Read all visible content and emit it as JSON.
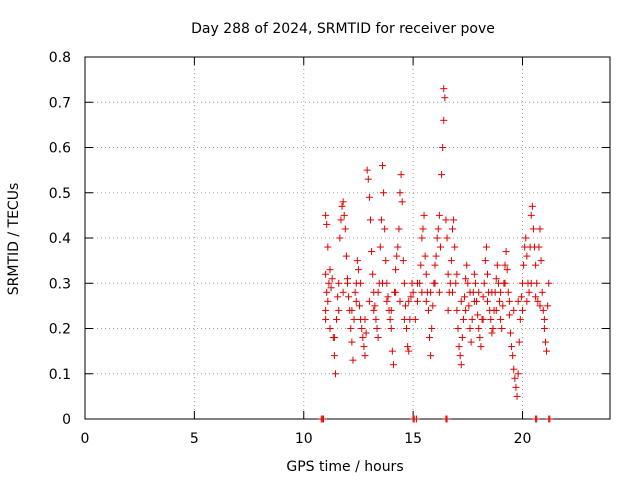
{
  "chart_data": {
    "type": "scatter",
    "title": "Day 288 of 2024, SRMTID for receiver pove",
    "xlabel": "GPS time / hours",
    "ylabel": "SRMTID / TECUs",
    "xlim": [
      0,
      24
    ],
    "ylim": [
      0,
      0.8
    ],
    "xticks": [
      0,
      5,
      10,
      15,
      20
    ],
    "yticks": [
      0,
      0.1,
      0.2,
      0.3,
      0.4,
      0.5,
      0.6,
      0.7,
      0.8
    ],
    "ytick_labels": [
      "0",
      "0.1",
      "0.2",
      "0.3",
      "0.4",
      "0.5",
      "0.6",
      "0.7",
      "0.8"
    ],
    "grid": true,
    "marker": "+",
    "marker_color": "#e00000",
    "series": [
      {
        "points": [
          [
            10.8,
            0.0
          ],
          [
            10.85,
            0.0
          ],
          [
            10.9,
            0.0
          ],
          [
            15.0,
            0.0
          ],
          [
            15.05,
            0.0
          ],
          [
            15.15,
            0.0
          ],
          [
            16.5,
            0.0
          ],
          [
            16.55,
            0.0
          ],
          [
            20.6,
            0.0
          ],
          [
            20.65,
            0.0
          ],
          [
            21.2,
            0.0
          ],
          [
            21.25,
            0.0
          ],
          [
            11.0,
            0.45
          ],
          [
            11.05,
            0.43
          ],
          [
            11.1,
            0.38
          ],
          [
            11.0,
            0.32
          ],
          [
            11.05,
            0.28
          ],
          [
            11.1,
            0.26
          ],
          [
            11.0,
            0.24
          ],
          [
            11.15,
            0.3
          ],
          [
            11.2,
            0.33
          ],
          [
            11.25,
            0.29
          ],
          [
            11.3,
            0.31
          ],
          [
            11.35,
            0.18
          ],
          [
            11.4,
            0.14
          ],
          [
            11.45,
            0.1
          ],
          [
            11.5,
            0.22
          ],
          [
            11.55,
            0.27
          ],
          [
            11.6,
            0.3
          ],
          [
            11.65,
            0.4
          ],
          [
            11.7,
            0.44
          ],
          [
            11.75,
            0.47
          ],
          [
            11.8,
            0.48
          ],
          [
            11.85,
            0.45
          ],
          [
            11.9,
            0.42
          ],
          [
            11.95,
            0.36
          ],
          [
            12.0,
            0.31
          ],
          [
            12.05,
            0.27
          ],
          [
            12.1,
            0.24
          ],
          [
            12.15,
            0.2
          ],
          [
            12.2,
            0.17
          ],
          [
            12.25,
            0.13
          ],
          [
            12.3,
            0.22
          ],
          [
            12.35,
            0.28
          ],
          [
            12.4,
            0.3
          ],
          [
            12.45,
            0.35
          ],
          [
            12.5,
            0.33
          ],
          [
            12.55,
            0.25
          ],
          [
            12.6,
            0.22
          ],
          [
            12.65,
            0.2
          ],
          [
            12.7,
            0.18
          ],
          [
            12.75,
            0.16
          ],
          [
            12.8,
            0.14
          ],
          [
            12.85,
            0.19
          ],
          [
            12.9,
            0.55
          ],
          [
            12.95,
            0.53
          ],
          [
            13.0,
            0.49
          ],
          [
            13.05,
            0.44
          ],
          [
            13.1,
            0.37
          ],
          [
            13.15,
            0.32
          ],
          [
            13.2,
            0.28
          ],
          [
            13.25,
            0.25
          ],
          [
            13.3,
            0.22
          ],
          [
            13.35,
            0.2
          ],
          [
            13.4,
            0.18
          ],
          [
            13.45,
            0.3
          ],
          [
            13.5,
            0.38
          ],
          [
            13.55,
            0.44
          ],
          [
            13.6,
            0.56
          ],
          [
            13.65,
            0.5
          ],
          [
            13.7,
            0.42
          ],
          [
            13.75,
            0.35
          ],
          [
            13.8,
            0.3
          ],
          [
            13.85,
            0.27
          ],
          [
            13.9,
            0.24
          ],
          [
            13.95,
            0.22
          ],
          [
            14.0,
            0.2
          ],
          [
            14.05,
            0.15
          ],
          [
            14.1,
            0.12
          ],
          [
            14.15,
            0.28
          ],
          [
            14.2,
            0.33
          ],
          [
            14.25,
            0.36
          ],
          [
            14.3,
            0.38
          ],
          [
            14.35,
            0.42
          ],
          [
            14.4,
            0.5
          ],
          [
            14.45,
            0.54
          ],
          [
            14.5,
            0.48
          ],
          [
            14.55,
            0.35
          ],
          [
            14.6,
            0.3
          ],
          [
            14.65,
            0.25
          ],
          [
            14.7,
            0.2
          ],
          [
            14.75,
            0.16
          ],
          [
            14.8,
            0.15
          ],
          [
            14.85,
            0.22
          ],
          [
            14.9,
            0.27
          ],
          [
            14.95,
            0.3
          ],
          [
            15.0,
            0.28
          ],
          [
            15.1,
            0.22
          ],
          [
            15.2,
            0.26
          ],
          [
            15.3,
            0.3
          ],
          [
            15.35,
            0.34
          ],
          [
            15.4,
            0.4
          ],
          [
            15.45,
            0.42
          ],
          [
            15.5,
            0.45
          ],
          [
            15.55,
            0.36
          ],
          [
            15.6,
            0.32
          ],
          [
            15.65,
            0.28
          ],
          [
            15.7,
            0.24
          ],
          [
            15.75,
            0.18
          ],
          [
            15.8,
            0.14
          ],
          [
            15.85,
            0.2
          ],
          [
            15.9,
            0.25
          ],
          [
            15.95,
            0.3
          ],
          [
            16.0,
            0.34
          ],
          [
            16.05,
            0.36
          ],
          [
            16.1,
            0.4
          ],
          [
            16.15,
            0.42
          ],
          [
            16.2,
            0.45
          ],
          [
            16.25,
            0.38
          ],
          [
            16.3,
            0.54
          ],
          [
            16.35,
            0.6
          ],
          [
            16.4,
            0.66
          ],
          [
            16.45,
            0.71
          ],
          [
            16.4,
            0.73
          ],
          [
            16.5,
            0.44
          ],
          [
            16.55,
            0.4
          ],
          [
            16.6,
            0.32
          ],
          [
            16.65,
            0.28
          ],
          [
            16.7,
            0.3
          ],
          [
            16.75,
            0.35
          ],
          [
            16.8,
            0.42
          ],
          [
            16.85,
            0.44
          ],
          [
            16.9,
            0.38
          ],
          [
            16.95,
            0.3
          ],
          [
            17.0,
            0.24
          ],
          [
            17.05,
            0.2
          ],
          [
            17.1,
            0.16
          ],
          [
            17.15,
            0.14
          ],
          [
            17.2,
            0.12
          ],
          [
            17.25,
            0.18
          ],
          [
            17.3,
            0.22
          ],
          [
            17.35,
            0.27
          ],
          [
            17.4,
            0.31
          ],
          [
            17.45,
            0.34
          ],
          [
            17.5,
            0.3
          ],
          [
            17.55,
            0.25
          ],
          [
            17.6,
            0.2
          ],
          [
            17.65,
            0.17
          ],
          [
            17.7,
            0.22
          ],
          [
            17.75,
            0.28
          ],
          [
            17.8,
            0.32
          ],
          [
            17.85,
            0.3
          ],
          [
            17.9,
            0.26
          ],
          [
            17.95,
            0.23
          ],
          [
            18.0,
            0.2
          ],
          [
            18.05,
            0.18
          ],
          [
            18.1,
            0.16
          ],
          [
            18.15,
            0.22
          ],
          [
            18.2,
            0.27
          ],
          [
            18.25,
            0.3
          ],
          [
            18.3,
            0.35
          ],
          [
            18.35,
            0.38
          ],
          [
            18.4,
            0.32
          ],
          [
            18.45,
            0.28
          ],
          [
            18.5,
            0.24
          ],
          [
            18.55,
            0.22
          ],
          [
            18.6,
            0.19
          ],
          [
            18.65,
            0.2
          ],
          [
            18.7,
            0.24
          ],
          [
            18.75,
            0.28
          ],
          [
            18.8,
            0.31
          ],
          [
            18.85,
            0.34
          ],
          [
            18.9,
            0.3
          ],
          [
            18.95,
            0.26
          ],
          [
            19.0,
            0.22
          ],
          [
            19.05,
            0.2
          ],
          [
            19.1,
            0.25
          ],
          [
            19.15,
            0.3
          ],
          [
            19.2,
            0.34
          ],
          [
            19.25,
            0.37
          ],
          [
            19.3,
            0.33
          ],
          [
            19.35,
            0.28
          ],
          [
            19.4,
            0.23
          ],
          [
            19.45,
            0.19
          ],
          [
            19.5,
            0.16
          ],
          [
            19.55,
            0.14
          ],
          [
            19.6,
            0.11
          ],
          [
            19.65,
            0.09
          ],
          [
            19.7,
            0.07
          ],
          [
            19.75,
            0.05
          ],
          [
            19.8,
            0.1
          ],
          [
            19.85,
            0.17
          ],
          [
            19.9,
            0.22
          ],
          [
            19.95,
            0.27
          ],
          [
            20.0,
            0.3
          ],
          [
            20.05,
            0.34
          ],
          [
            20.1,
            0.38
          ],
          [
            20.15,
            0.4
          ],
          [
            20.2,
            0.36
          ],
          [
            20.25,
            0.3
          ],
          [
            20.3,
            0.28
          ],
          [
            20.35,
            0.38
          ],
          [
            20.4,
            0.45
          ],
          [
            20.45,
            0.47
          ],
          [
            20.5,
            0.42
          ],
          [
            20.55,
            0.38
          ],
          [
            20.6,
            0.34
          ],
          [
            20.65,
            0.3
          ],
          [
            20.7,
            0.26
          ],
          [
            20.75,
            0.38
          ],
          [
            20.8,
            0.42
          ],
          [
            20.85,
            0.35
          ],
          [
            20.9,
            0.28
          ],
          [
            20.95,
            0.24
          ],
          [
            21.0,
            0.2
          ],
          [
            21.05,
            0.17
          ],
          [
            21.1,
            0.15
          ],
          [
            21.15,
            0.25
          ],
          [
            21.2,
            0.3
          ],
          [
            11.0,
            0.22
          ],
          [
            11.2,
            0.2
          ],
          [
            11.4,
            0.18
          ],
          [
            11.6,
            0.24
          ],
          [
            11.8,
            0.28
          ],
          [
            12.0,
            0.3
          ],
          [
            12.2,
            0.24
          ],
          [
            12.4,
            0.26
          ],
          [
            12.6,
            0.3
          ],
          [
            12.8,
            0.22
          ],
          [
            13.0,
            0.26
          ],
          [
            13.2,
            0.24
          ],
          [
            13.4,
            0.28
          ],
          [
            13.6,
            0.3
          ],
          [
            13.8,
            0.26
          ],
          [
            14.0,
            0.24
          ],
          [
            14.2,
            0.28
          ],
          [
            14.4,
            0.26
          ],
          [
            14.6,
            0.22
          ],
          [
            14.8,
            0.26
          ],
          [
            15.2,
            0.3
          ],
          [
            15.4,
            0.28
          ],
          [
            15.6,
            0.26
          ],
          [
            15.8,
            0.28
          ],
          [
            16.0,
            0.3
          ],
          [
            16.2,
            0.28
          ],
          [
            16.6,
            0.24
          ],
          [
            16.8,
            0.28
          ],
          [
            17.0,
            0.32
          ],
          [
            17.2,
            0.26
          ],
          [
            17.4,
            0.24
          ],
          [
            17.6,
            0.28
          ],
          [
            17.8,
            0.26
          ],
          [
            18.0,
            0.28
          ],
          [
            18.2,
            0.22
          ],
          [
            18.4,
            0.26
          ],
          [
            18.6,
            0.28
          ],
          [
            18.8,
            0.24
          ],
          [
            19.0,
            0.28
          ],
          [
            19.2,
            0.3
          ],
          [
            19.4,
            0.26
          ],
          [
            19.6,
            0.24
          ],
          [
            19.8,
            0.26
          ],
          [
            20.0,
            0.24
          ],
          [
            20.2,
            0.26
          ],
          [
            20.4,
            0.3
          ],
          [
            20.6,
            0.27
          ],
          [
            20.8,
            0.25
          ],
          [
            21.0,
            0.22
          ]
        ]
      }
    ]
  }
}
